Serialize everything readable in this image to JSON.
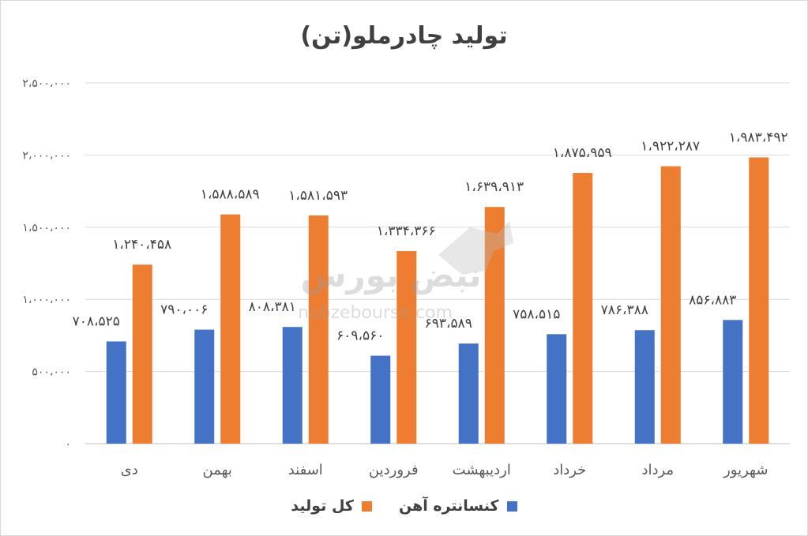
{
  "chart_data": {
    "type": "bar",
    "title": "تولید چادرملو(تن)",
    "categories": [
      "دی",
      "بهمن",
      "اسفند",
      "فروردین",
      "اردیبهشت",
      "خرداد",
      "مرداد",
      "شهریور"
    ],
    "series": [
      {
        "name": "کنسانتره آهن",
        "color": "#4472C4",
        "values": [
          708525,
          790006,
          808381,
          609560,
          693589,
          758515,
          786388,
          856883
        ],
        "labels": [
          "۷۰۸،۵۲۵",
          "۷۹۰،۰۰۶",
          "۸۰۸،۳۸۱",
          "۶۰۹،۵۶۰",
          "۶۹۳،۵۸۹",
          "۷۵۸،۵۱۵",
          "۷۸۶،۳۸۸",
          "۸۵۶،۸۸۳"
        ]
      },
      {
        "name": "کل تولید",
        "color": "#ED7D31",
        "values": [
          1240458,
          1588589,
          1581593,
          1334366,
          1639913,
          1875959,
          1922287,
          1983492
        ],
        "labels": [
          "۱،۲۴۰،۴۵۸",
          "۱،۵۸۸،۵۸۹",
          "۱،۵۸۱،۵۹۳",
          "۱،۳۳۴،۳۶۶",
          "۱،۶۳۹،۹۱۳",
          "۱،۸۷۵،۹۵۹",
          "۱،۹۲۲،۲۸۷",
          "۱،۹۸۳،۴۹۲"
        ]
      }
    ],
    "ylim": [
      0,
      2500000
    ],
    "yticks": [
      0,
      500000,
      1000000,
      1500000,
      2000000,
      2500000
    ],
    "ytick_labels": [
      "۰",
      "۵۰۰،۰۰۰",
      "۱،۰۰۰،۰۰۰",
      "۱،۵۰۰،۰۰۰",
      "۲،۰۰۰،۰۰۰",
      "۲،۵۰۰،۰۰۰"
    ],
    "grid": true,
    "legend_position": "bottom"
  },
  "watermark": {
    "brand": "نبض بورس",
    "url": "nabzebourse.com"
  }
}
